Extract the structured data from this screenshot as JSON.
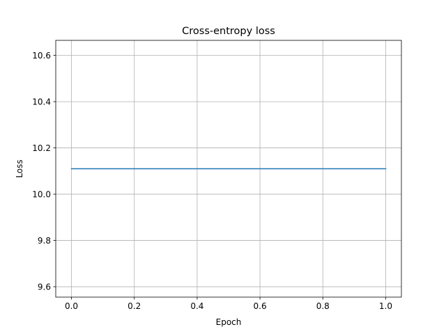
{
  "chart_data": {
    "type": "line",
    "title": "Cross-entropy loss",
    "xlabel": "Epoch",
    "ylabel": "Loss",
    "x": [
      0.0,
      1.0
    ],
    "series": [
      {
        "values": [
          10.11,
          10.11
        ],
        "color": "#1f77b4"
      }
    ],
    "xlim": [
      -0.05,
      1.05
    ],
    "ylim": [
      9.555,
      10.665
    ],
    "xticks": [
      0.0,
      0.2,
      0.4,
      0.6,
      0.8,
      1.0
    ],
    "xtick_labels": [
      "0.0",
      "0.2",
      "0.4",
      "0.6",
      "0.8",
      "1.0"
    ],
    "yticks": [
      9.6,
      9.8,
      10.0,
      10.2,
      10.4,
      10.6
    ],
    "ytick_labels": [
      "9.6",
      "9.8",
      "10.0",
      "10.2",
      "10.4",
      "10.6"
    ],
    "grid": true,
    "grid_color": "#b0b0b0"
  }
}
